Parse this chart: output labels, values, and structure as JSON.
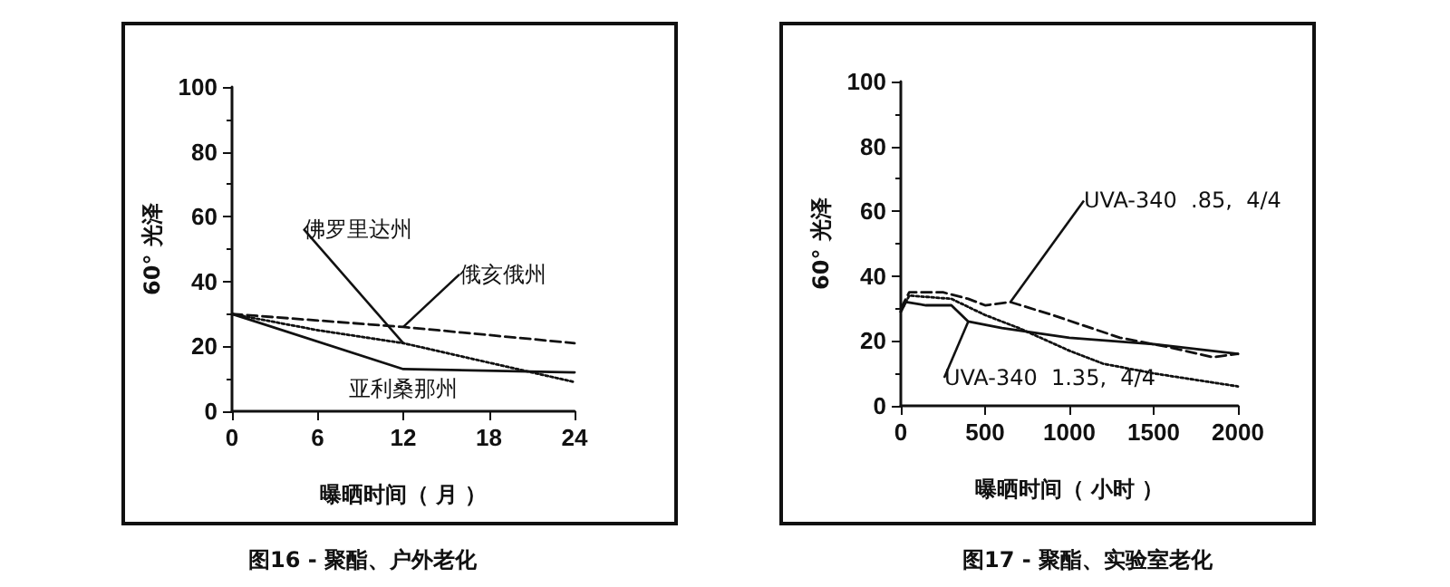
{
  "chart_data": [
    {
      "type": "line",
      "title": "图16 - 聚酯、户外老化",
      "xlabel": "曝晒时间（ 月 ）",
      "ylabel": "60° 光泽",
      "xlim": [
        0,
        24
      ],
      "xticks": [
        0,
        6,
        12,
        18,
        24
      ],
      "ylim": [
        0,
        100
      ],
      "yticks": [
        0,
        20,
        40,
        60,
        80,
        100
      ],
      "grid": false,
      "legend": false,
      "marker": "none",
      "series": [
        {
          "name": "亚利桑那州",
          "color": "#111111",
          "line_style": "solid",
          "x": [
            0,
            12,
            24
          ],
          "values": [
            30,
            13,
            12
          ]
        },
        {
          "name": "佛罗里达州",
          "color": "#111111",
          "line_style": "dotted",
          "x": [
            0,
            6,
            12,
            18,
            24
          ],
          "values": [
            30,
            25,
            21,
            15,
            9
          ]
        },
        {
          "name": "俄亥俄州",
          "color": "#111111",
          "line_style": "dashed",
          "x": [
            0,
            12,
            24
          ],
          "values": [
            30,
            26,
            21
          ]
        }
      ]
    },
    {
      "type": "line",
      "title": "图17 - 聚酯、实验室老化",
      "xlabel": "曝晒时间（ 小时 ）",
      "ylabel": "60° 光泽",
      "xlim": [
        0,
        2000
      ],
      "xticks": [
        0,
        500,
        1000,
        1500,
        2000
      ],
      "ylim": [
        0,
        100
      ],
      "yticks": [
        0,
        20,
        40,
        60,
        80,
        100
      ],
      "grid": false,
      "legend": false,
      "marker": "none",
      "series": [
        {
          "name": "UVA-340  1.35,  4/4",
          "color": "#111111",
          "line_style": "solid",
          "x": [
            0,
            30,
            150,
            300,
            400,
            600,
            1000,
            1500,
            2000
          ],
          "values": [
            29,
            32,
            31,
            31,
            26,
            24,
            21,
            19,
            16
          ]
        },
        {
          "name": "UVA-340  .85,  4/4",
          "color": "#111111",
          "line_style": "dashed",
          "x": [
            0,
            50,
            250,
            400,
            500,
            650,
            900,
            1300,
            1600,
            1850,
            2000
          ],
          "values": [
            30,
            35,
            35,
            33,
            31,
            32,
            28,
            21,
            18,
            15,
            16
          ]
        },
        {
          "color": "#111111",
          "line_style": "dotted",
          "x": [
            0,
            50,
            300,
            500,
            700,
            1000,
            1200,
            1500,
            2000
          ],
          "values": [
            29,
            34,
            33,
            28,
            24,
            17,
            13,
            10,
            6
          ]
        }
      ]
    }
  ]
}
